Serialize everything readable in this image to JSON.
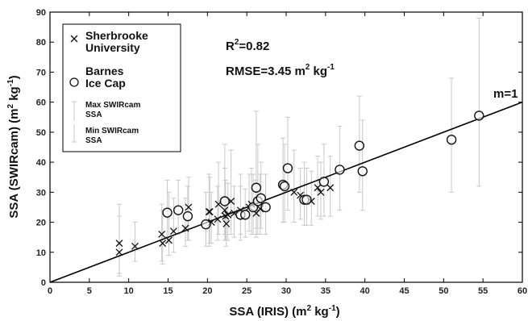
{
  "chart_data": {
    "type": "scatter",
    "title": "",
    "xlabel_main": "SSA (IRIS) (m",
    "xlabel_sup": "2",
    "xlabel_mid": " kg",
    "xlabel_sup2": "-1",
    "xlabel_end": ")",
    "ylabel_main": "SSA (SWIRcam) (m",
    "ylabel_sup": "2",
    "ylabel_mid": " kg",
    "ylabel_sup2": "-1",
    "ylabel_end": ")",
    "xlim": [
      0,
      60
    ],
    "ylim": [
      0,
      90
    ],
    "xticks": [
      0,
      5,
      10,
      15,
      20,
      25,
      30,
      35,
      40,
      45,
      50,
      55,
      60
    ],
    "yticks": [
      0,
      10,
      20,
      30,
      40,
      50,
      60,
      70,
      80,
      90
    ],
    "grid": false,
    "legend_position": "top-left",
    "stats": {
      "r2_label": "R",
      "r2_sup": "2",
      "r2_value": "=0.82",
      "rmse_label": "RMSE=3.45 m",
      "rmse_sup": "2",
      "rmse_mid": " kg",
      "rmse_sup2": "-1"
    },
    "line_label": "m=1",
    "one_to_one_line": {
      "x": [
        0,
        60
      ],
      "y": [
        0,
        60
      ]
    },
    "legend": [
      {
        "marker": "x",
        "lines": [
          "Sherbrooke",
          "University"
        ],
        "size": "big"
      },
      {
        "marker": "o",
        "lines": [
          "Barnes",
          "Ice Cap"
        ],
        "size": "big"
      },
      {
        "marker": "errtop",
        "lines": [
          "Max SWIRcam",
          "SSA"
        ],
        "size": "small"
      },
      {
        "marker": "errbot",
        "lines": [
          "Min SWIRcam",
          "SSA"
        ],
        "size": "small"
      }
    ],
    "series": [
      {
        "name": "Sherbrooke University",
        "marker": "x",
        "points": [
          {
            "x": 8.8,
            "y": 13,
            "ymin": 2,
            "ymax": 26
          },
          {
            "x": 8.8,
            "y": 10,
            "ymin": 3,
            "ymax": 22
          },
          {
            "x": 10.8,
            "y": 12,
            "ymin": 7,
            "ymax": 20
          },
          {
            "x": 14.2,
            "y": 16,
            "ymin": 7,
            "ymax": 26
          },
          {
            "x": 14.3,
            "y": 13,
            "ymin": 6,
            "ymax": 24
          },
          {
            "x": 15.1,
            "y": 14,
            "ymin": 9,
            "ymax": 30
          },
          {
            "x": 15.7,
            "y": 17,
            "ymin": 10,
            "ymax": 28
          },
          {
            "x": 17.2,
            "y": 18,
            "ymin": 12,
            "ymax": 28
          },
          {
            "x": 17.6,
            "y": 25,
            "ymin": 14,
            "ymax": 35
          },
          {
            "x": 20.2,
            "y": 23.5,
            "ymin": 12,
            "ymax": 36
          },
          {
            "x": 20.3,
            "y": 23.5,
            "ymin": 13,
            "ymax": 35
          },
          {
            "x": 20.5,
            "y": 20,
            "ymin": 13,
            "ymax": 30
          },
          {
            "x": 21.3,
            "y": 21,
            "ymin": 14,
            "ymax": 32
          },
          {
            "x": 21.4,
            "y": 26,
            "ymin": 16,
            "ymax": 40
          },
          {
            "x": 22.2,
            "y": 24,
            "ymin": 14,
            "ymax": 38
          },
          {
            "x": 22.3,
            "y": 22,
            "ymin": 14,
            "ymax": 34
          },
          {
            "x": 22.4,
            "y": 19.5,
            "ymin": 12,
            "ymax": 28
          },
          {
            "x": 22.6,
            "y": 22.5,
            "ymin": 14,
            "ymax": 33
          },
          {
            "x": 23.0,
            "y": 27,
            "ymin": 16,
            "ymax": 44
          },
          {
            "x": 23.4,
            "y": 23,
            "ymin": 15,
            "ymax": 32
          },
          {
            "x": 24.2,
            "y": 24,
            "ymin": 16,
            "ymax": 36
          },
          {
            "x": 25.3,
            "y": 25,
            "ymin": 17,
            "ymax": 36
          },
          {
            "x": 25.6,
            "y": 26,
            "ymin": 16,
            "ymax": 38
          },
          {
            "x": 26.2,
            "y": 23,
            "ymin": 15,
            "ymax": 34
          },
          {
            "x": 26.7,
            "y": 24.5,
            "ymin": 16,
            "ymax": 36
          },
          {
            "x": 31.0,
            "y": 30,
            "ymin": 20,
            "ymax": 44
          },
          {
            "x": 31.8,
            "y": 29,
            "ymin": 21,
            "ymax": 38
          },
          {
            "x": 33.2,
            "y": 27,
            "ymin": 19,
            "ymax": 37
          },
          {
            "x": 34.0,
            "y": 31.5,
            "ymin": 22,
            "ymax": 42
          },
          {
            "x": 34.4,
            "y": 30,
            "ymin": 21,
            "ymax": 40
          },
          {
            "x": 35.6,
            "y": 31.5,
            "ymin": 22,
            "ymax": 42
          }
        ]
      },
      {
        "name": "Barnes Ice Cap",
        "marker": "o",
        "points": [
          {
            "x": 14.9,
            "y": 23.2,
            "ymin": 13,
            "ymax": 34
          },
          {
            "x": 16.3,
            "y": 24,
            "ymin": 16,
            "ymax": 34
          },
          {
            "x": 17.5,
            "y": 22,
            "ymin": 14,
            "ymax": 32
          },
          {
            "x": 19.8,
            "y": 19.3,
            "ymin": 12,
            "ymax": 30
          },
          {
            "x": 22.2,
            "y": 27,
            "ymin": 16,
            "ymax": 46
          },
          {
            "x": 24.2,
            "y": 22.5,
            "ymin": 14,
            "ymax": 32
          },
          {
            "x": 24.8,
            "y": 22.5,
            "ymin": 15,
            "ymax": 31
          },
          {
            "x": 25.8,
            "y": 25,
            "ymin": 16,
            "ymax": 36
          },
          {
            "x": 26.2,
            "y": 31.5,
            "ymin": 18,
            "ymax": 57
          },
          {
            "x": 26.4,
            "y": 27,
            "ymin": 16,
            "ymax": 46
          },
          {
            "x": 26.8,
            "y": 28,
            "ymin": 18,
            "ymax": 40
          },
          {
            "x": 27.4,
            "y": 25,
            "ymin": 16,
            "ymax": 36
          },
          {
            "x": 29.6,
            "y": 32.5,
            "ymin": 20,
            "ymax": 48
          },
          {
            "x": 29.8,
            "y": 32,
            "ymin": 20,
            "ymax": 46
          },
          {
            "x": 30.2,
            "y": 38,
            "ymin": 24,
            "ymax": 55
          },
          {
            "x": 32.3,
            "y": 27.5,
            "ymin": 19,
            "ymax": 40
          },
          {
            "x": 32.6,
            "y": 27.5,
            "ymin": 19,
            "ymax": 38
          },
          {
            "x": 34.8,
            "y": 33.5,
            "ymin": 22,
            "ymax": 46
          },
          {
            "x": 36.8,
            "y": 37.5,
            "ymin": 24,
            "ymax": 52
          },
          {
            "x": 39.3,
            "y": 45.5,
            "ymin": 30,
            "ymax": 62
          },
          {
            "x": 39.7,
            "y": 37,
            "ymin": 24,
            "ymax": 54
          },
          {
            "x": 51.0,
            "y": 47.5,
            "ymin": 30,
            "ymax": 68
          },
          {
            "x": 54.5,
            "y": 55.5,
            "ymin": 32,
            "ymax": 88
          }
        ]
      }
    ]
  }
}
